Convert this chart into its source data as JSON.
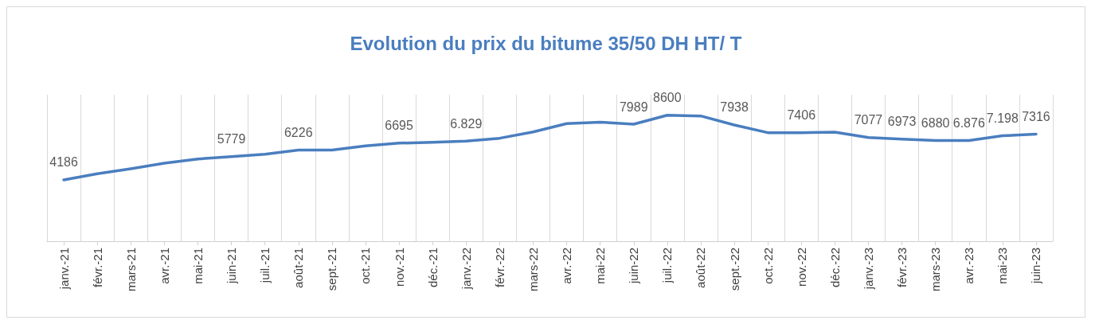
{
  "chart_data": {
    "type": "line",
    "title": "Evolution du prix du bitume 35/50 DH HT/ T",
    "categories": [
      "janv.-21",
      "févr.-21",
      "mars-21",
      "avr.-21",
      "mai-21",
      "juin-21",
      "juil.-21",
      "août-21",
      "sept.-21",
      "oct.-21",
      "nov.-21",
      "déc.-21",
      "janv.-22",
      "févr.-22",
      "mars-22",
      "avr.-22",
      "mai-22",
      "juin-22",
      "juil.-22",
      "août-22",
      "sept.-22",
      "oct.-22",
      "nov.-22",
      "déc.-22",
      "janv.-23",
      "févr.-23",
      "mars-23",
      "avr.-23",
      "mai-23",
      "juin-23"
    ],
    "series": [
      {
        "color": "#4a7ebf",
        "values": [
          4186,
          4610,
          4950,
          5325,
          5610,
          5779,
          5940,
          6226,
          6220,
          6510,
          6695,
          6750,
          6829,
          7030,
          7460,
          8030,
          8130,
          7989,
          8600,
          8550,
          7938,
          7410,
          7406,
          7450,
          7077,
          6973,
          6880,
          6876,
          7198,
          7316
        ],
        "value_labels": [
          "4186",
          null,
          null,
          null,
          null,
          "5779",
          null,
          "6226",
          null,
          null,
          "6695",
          null,
          "6.829",
          null,
          null,
          null,
          null,
          "7989",
          "8600",
          null,
          "7938",
          null,
          "7406",
          null,
          "7077",
          "6973",
          "6880",
          "6.876",
          "7.198",
          "7316"
        ]
      }
    ],
    "grid": "x",
    "marker": "none",
    "line_style": "solid"
  }
}
